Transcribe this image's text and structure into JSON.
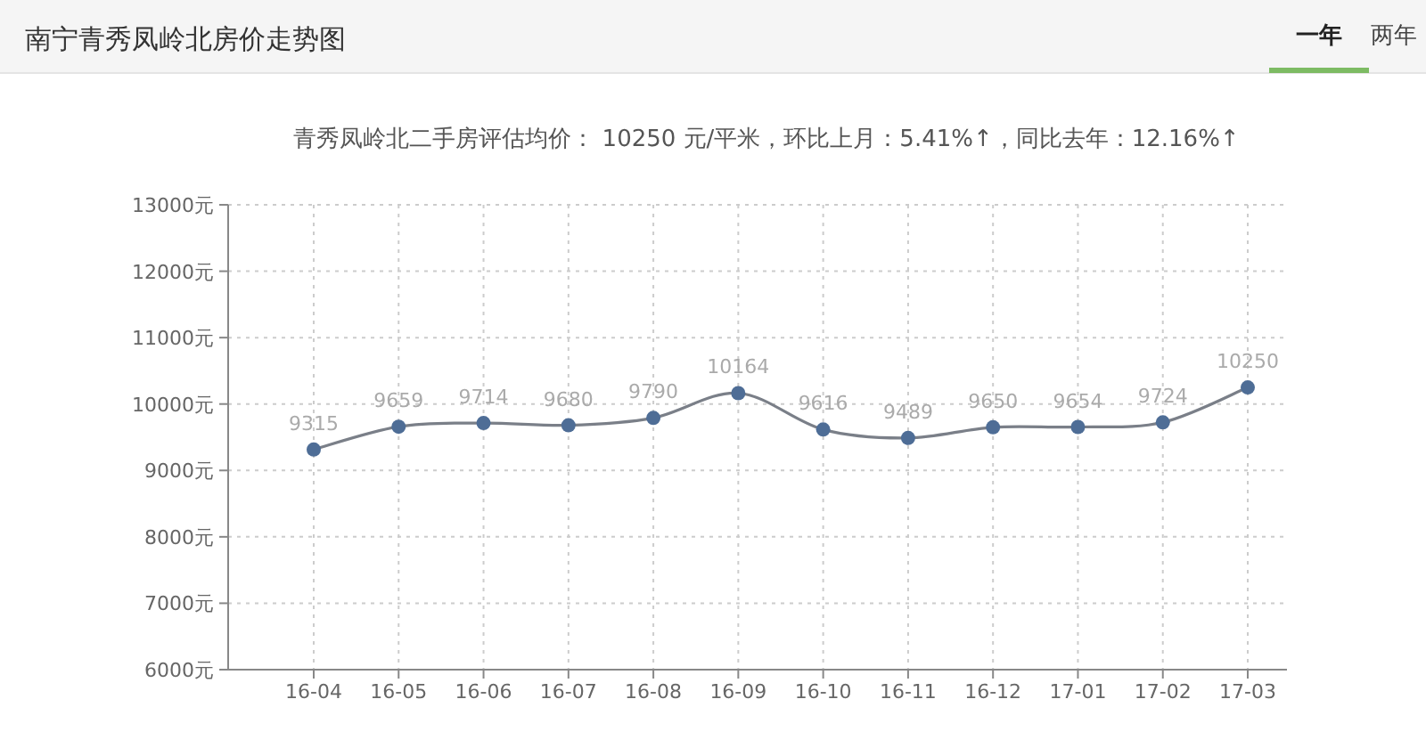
{
  "chart_data": {
    "type": "line",
    "title": "南宁青秀凤岭北房价走势图",
    "subtitle": "青秀凤岭北二手房评估均价： 10250 元/平米，环比上月：5.41%↑，同比去年：12.16%↑",
    "annotations": [
      "一年",
      "两年"
    ],
    "categories": [
      "16-04",
      "16-05",
      "16-06",
      "16-07",
      "16-08",
      "16-09",
      "16-10",
      "16-11",
      "16-12",
      "17-01",
      "17-02",
      "17-03"
    ],
    "series": [
      {
        "color": "#4e6d96",
        "values": [
          9315,
          9659,
          9714,
          9680,
          9790,
          10164,
          9616,
          9489,
          9650,
          9654,
          9724,
          10250
        ]
      }
    ],
    "ylim": [
      6000,
      13000
    ],
    "yticks": [
      {
        "value": 6000,
        "label": "6000元"
      },
      {
        "value": 7000,
        "label": "7000元"
      },
      {
        "value": 8000,
        "label": "8000元"
      },
      {
        "value": 9000,
        "label": "9000元"
      },
      {
        "value": 10000,
        "label": "10000元"
      },
      {
        "value": 11000,
        "label": "11000元"
      },
      {
        "value": 12000,
        "label": "12000元"
      },
      {
        "value": 13000,
        "label": "13000元"
      }
    ],
    "grid": true,
    "marker": "circle",
    "data_labels": true
  }
}
